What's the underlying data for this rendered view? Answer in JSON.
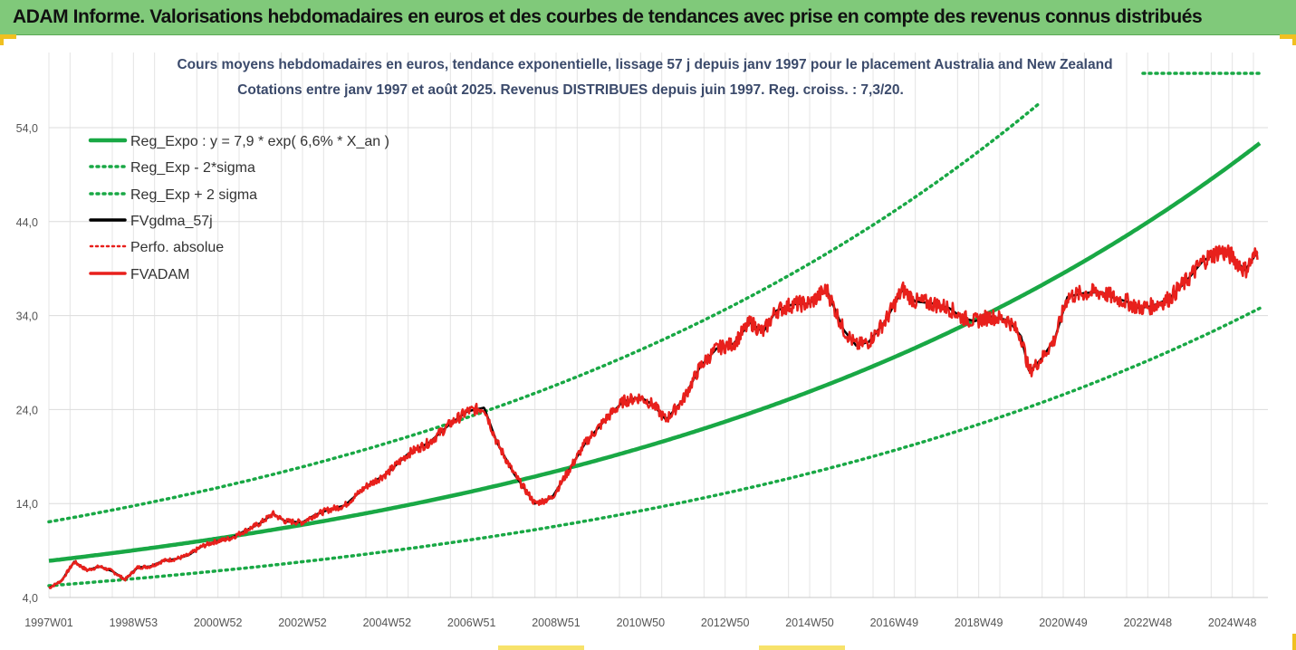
{
  "header": {
    "title": "ADAM Informe. Valorisations hebdomadaires en euros et des courbes de tendances avec prise en compte des revenus connus distribués"
  },
  "chart_data": {
    "type": "line",
    "title_line1": "Cours moyens hebdomadaires en euros, tendance exponentielle, lissage 57 j depuis janv 1997 pour le placement Australia and New Zealand",
    "title_line2": "Cotations entre janv 1997 et août 2025. Revenus DISTRIBUES depuis juin 1997. Reg. croiss. : 7,3/20.",
    "xlabel": "",
    "ylabel": "",
    "ylim": [
      4,
      58
    ],
    "yticks": [
      "4,0",
      "14,0",
      "24,0",
      "34,0",
      "44,0",
      "54,0"
    ],
    "ytick_values": [
      4,
      14,
      24,
      34,
      44,
      54
    ],
    "xticks": [
      "1997W01",
      "1998W53",
      "2000W52",
      "2002W52",
      "2004W52",
      "2006W51",
      "2008W51",
      "2010W50",
      "2012W50",
      "2014W50",
      "2016W49",
      "2018W49",
      "2020W49",
      "2022W48",
      "2024W48"
    ],
    "xtick_years": [
      1997.0,
      1999.0,
      2001.0,
      2003.0,
      2005.0,
      2007.0,
      2009.0,
      2011.0,
      2013.0,
      2015.0,
      2017.0,
      2019.0,
      2021.0,
      2023.0,
      2025.0
    ],
    "xlim": [
      1997.0,
      2025.65
    ],
    "grid": true,
    "legend_position": "top-left",
    "series": [
      {
        "name": "Reg_Expo : y = 7,9 * exp( 6,6% *  X_an )",
        "color": "#19a845",
        "style": "solid",
        "a": 7.9,
        "rate": 0.066
      },
      {
        "name": "Reg_Exp - 2*sigma",
        "color": "#19a845",
        "style": "dotted",
        "a": 5.25,
        "rate": 0.066
      },
      {
        "name": "Reg_Exp + 2 sigma",
        "color": "#19a845",
        "style": "dotted",
        "a": 12.05,
        "rate": 0.066
      },
      {
        "name": "FVgdma_57j",
        "color": "#000000",
        "style": "solid"
      },
      {
        "name": "Perfo. absolue",
        "color": "#e8201c",
        "style": "dotted"
      },
      {
        "name": "FVADAM",
        "color": "#e8201c",
        "style": "solid"
      }
    ],
    "fvadam_points": [
      [
        1997.0,
        5.0
      ],
      [
        1997.3,
        5.8
      ],
      [
        1997.6,
        7.8
      ],
      [
        1997.9,
        6.9
      ],
      [
        1998.2,
        7.3
      ],
      [
        1998.5,
        6.8
      ],
      [
        1998.8,
        5.9
      ],
      [
        1999.1,
        7.2
      ],
      [
        1999.4,
        7.3
      ],
      [
        1999.7,
        7.9
      ],
      [
        2000.0,
        8.1
      ],
      [
        2000.3,
        8.5
      ],
      [
        2000.6,
        9.4
      ],
      [
        2000.9,
        9.9
      ],
      [
        2001.3,
        10.3
      ],
      [
        2001.6,
        11.0
      ],
      [
        2002.0,
        11.9
      ],
      [
        2002.3,
        12.9
      ],
      [
        2002.6,
        12.1
      ],
      [
        2003.0,
        12.0
      ],
      [
        2003.3,
        12.8
      ],
      [
        2003.6,
        13.3
      ],
      [
        2004.0,
        13.8
      ],
      [
        2004.5,
        15.8
      ],
      [
        2005.0,
        17.2
      ],
      [
        2005.5,
        19.3
      ],
      [
        2006.0,
        20.5
      ],
      [
        2006.5,
        22.5
      ],
      [
        2006.9,
        23.8
      ],
      [
        2007.3,
        24.2
      ],
      [
        2007.6,
        20.5
      ],
      [
        2008.0,
        17.2
      ],
      [
        2008.5,
        14.0
      ],
      [
        2008.9,
        14.6
      ],
      [
        2009.3,
        17.5
      ],
      [
        2009.7,
        20.5
      ],
      [
        2010.2,
        23.1
      ],
      [
        2010.6,
        24.9
      ],
      [
        2011.0,
        25.3
      ],
      [
        2011.3,
        24.5
      ],
      [
        2011.6,
        22.9
      ],
      [
        2012.0,
        25.0
      ],
      [
        2012.4,
        28.5
      ],
      [
        2012.8,
        30.5
      ],
      [
        2013.2,
        31.0
      ],
      [
        2013.6,
        33.3
      ],
      [
        2013.9,
        32.2
      ],
      [
        2014.2,
        34.5
      ],
      [
        2014.6,
        35.2
      ],
      [
        2015.0,
        35.3
      ],
      [
        2015.4,
        36.8
      ],
      [
        2015.8,
        32.5
      ],
      [
        2016.1,
        30.8
      ],
      [
        2016.4,
        31.2
      ],
      [
        2016.8,
        33.5
      ],
      [
        2017.2,
        36.8
      ],
      [
        2017.5,
        35.5
      ],
      [
        2017.9,
        35.3
      ],
      [
        2018.3,
        34.8
      ],
      [
        2018.6,
        33.8
      ],
      [
        2018.9,
        33.4
      ],
      [
        2019.3,
        33.9
      ],
      [
        2019.7,
        33.5
      ],
      [
        2020.0,
        31.8
      ],
      [
        2020.2,
        28.0
      ],
      [
        2020.5,
        29.5
      ],
      [
        2020.8,
        31.5
      ],
      [
        2021.1,
        36.0
      ],
      [
        2021.5,
        36.4
      ],
      [
        2021.9,
        36.5
      ],
      [
        2022.2,
        35.9
      ],
      [
        2022.5,
        35.5
      ],
      [
        2022.8,
        34.8
      ],
      [
        2023.1,
        35.0
      ],
      [
        2023.5,
        35.8
      ],
      [
        2023.9,
        37.6
      ],
      [
        2024.3,
        39.8
      ],
      [
        2024.7,
        40.9
      ],
      [
        2025.0,
        40.3
      ],
      [
        2025.3,
        38.8
      ],
      [
        2025.6,
        40.8
      ]
    ]
  }
}
